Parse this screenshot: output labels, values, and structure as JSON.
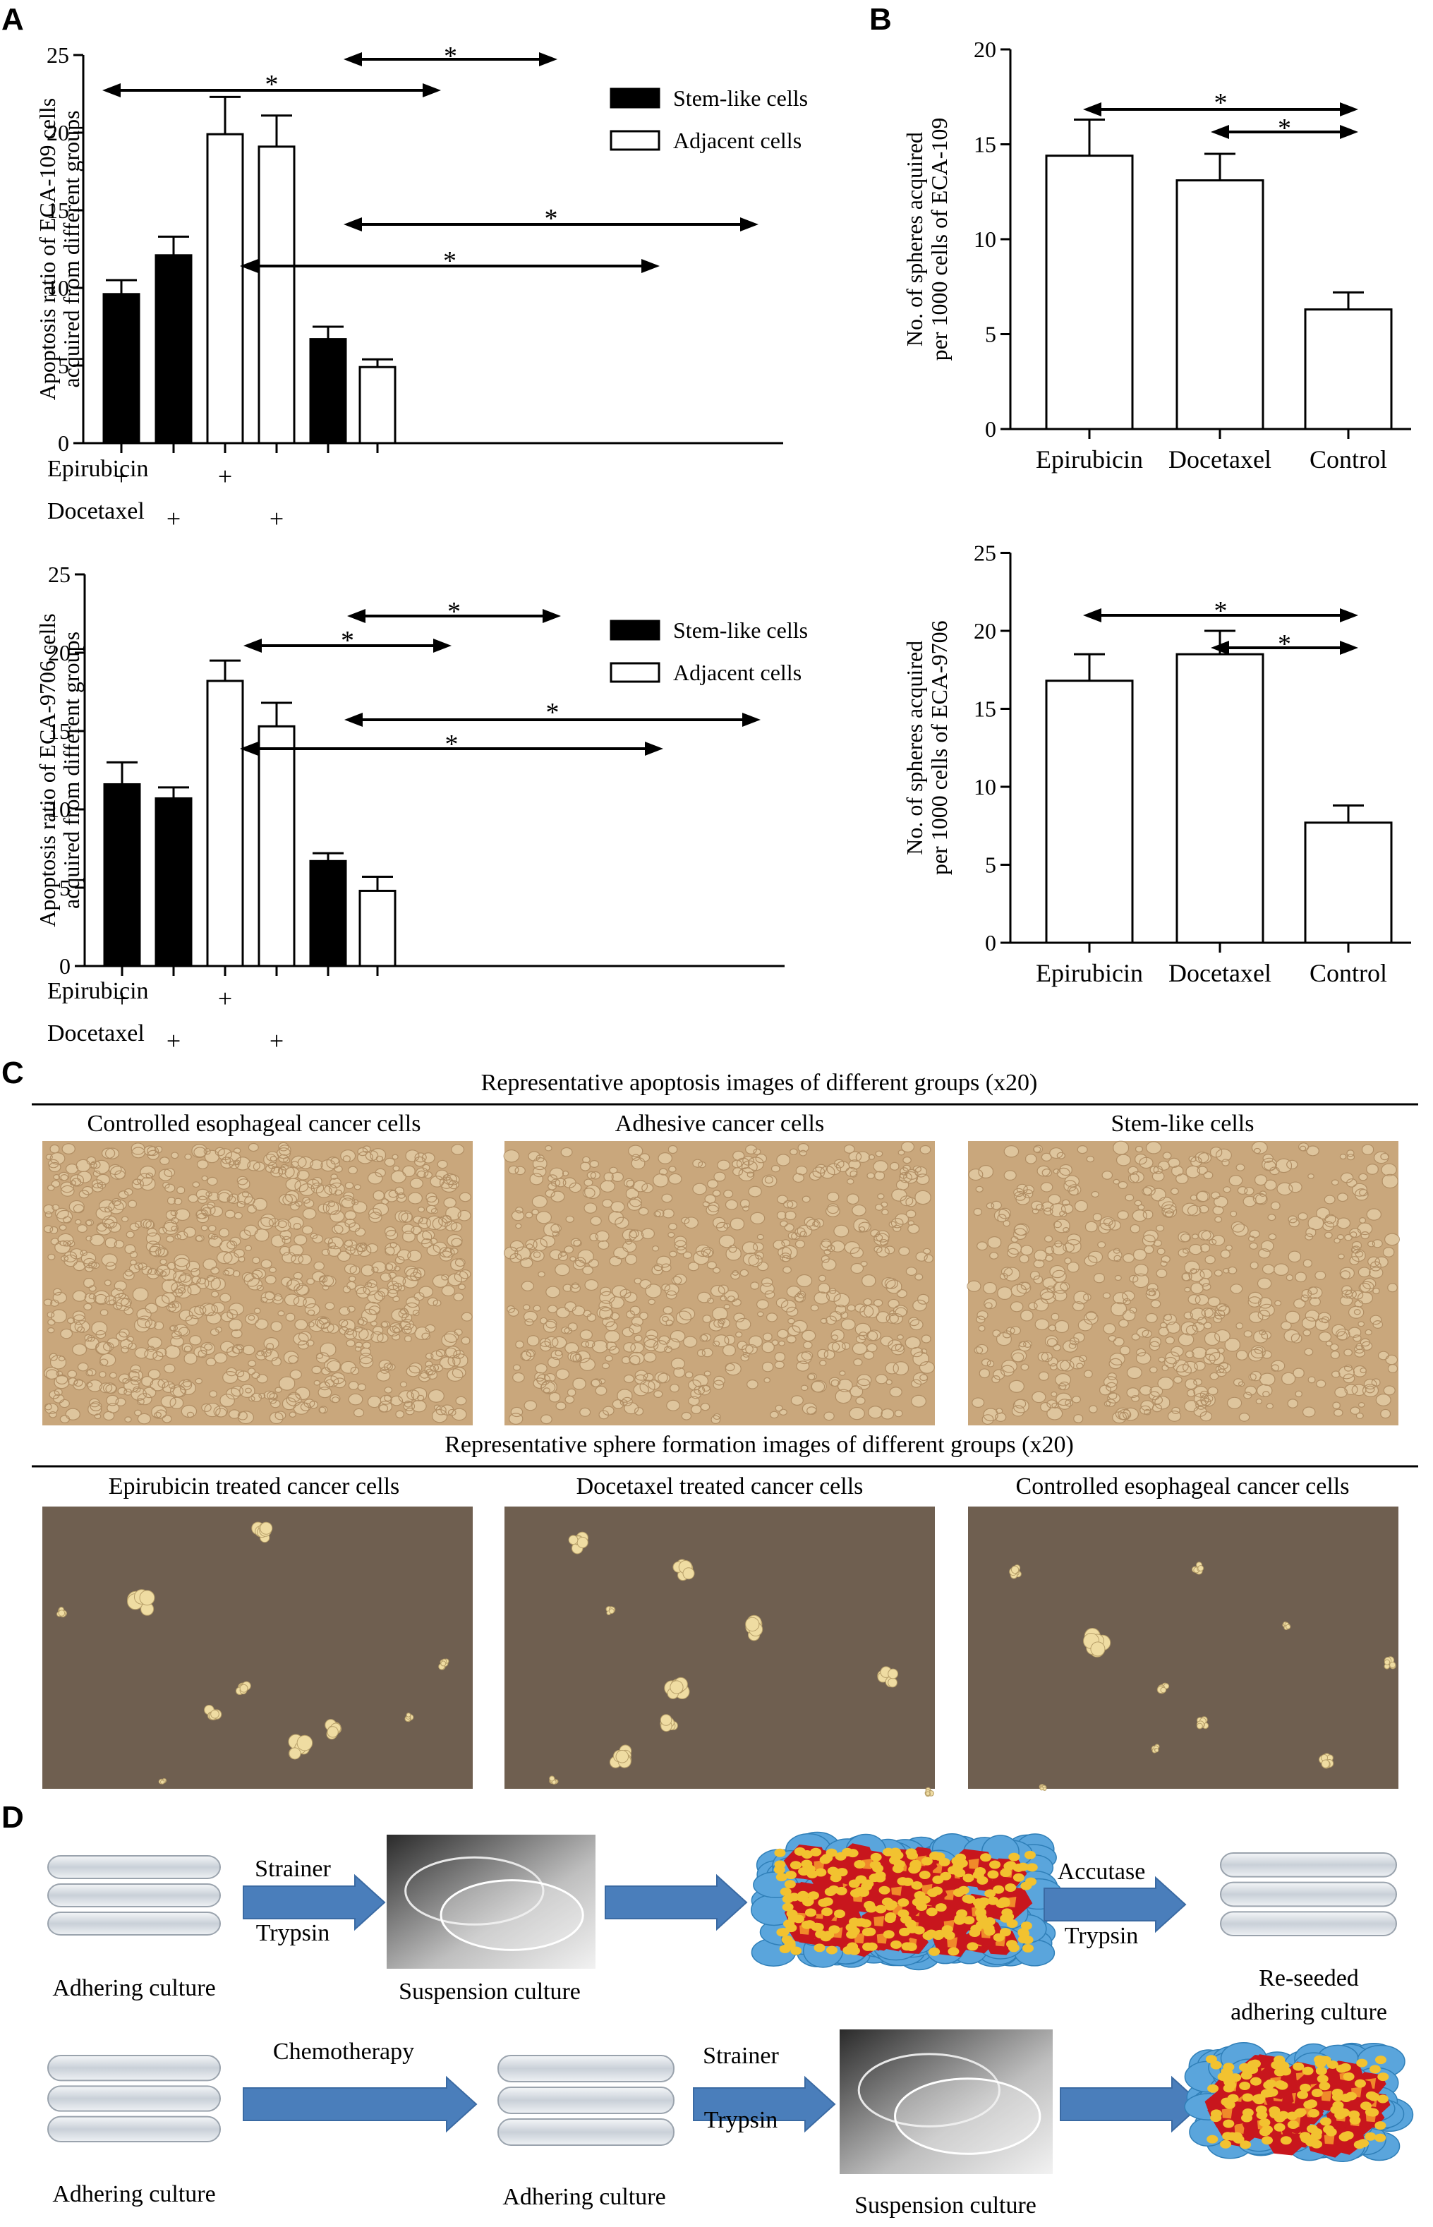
{
  "panels": {
    "a": "A",
    "b": "B",
    "c": "C",
    "d": "D"
  },
  "chart_data": [
    {
      "id": "A1",
      "type": "bar",
      "ylabel": [
        "Apoptosis ratio of ECA-109 cells",
        "acquired from different groups"
      ],
      "ylim": [
        0,
        25
      ],
      "yticks": [
        0,
        5,
        10,
        15,
        20,
        25
      ],
      "values": [
        9.6,
        12.1,
        19.9,
        19.1,
        6.7,
        4.9
      ],
      "errors": [
        0.9,
        1.2,
        2.4,
        2.0,
        0.8,
        0.5
      ],
      "fills": [
        "black",
        "black",
        "white",
        "white",
        "black",
        "white"
      ],
      "legend": [
        {
          "name": "Stem-like cells",
          "fill": "black"
        },
        {
          "name": "Adjacent cells",
          "fill": "white"
        }
      ],
      "legend_position": "top-right",
      "treatments": {
        "rows": [
          "Epirubicin",
          "Docetaxel"
        ],
        "marks": [
          "+",
          "+"
        ],
        "epirubicin_bars": [
          0,
          2
        ],
        "docetaxel_bars": [
          1,
          3
        ]
      },
      "significance": [
        {
          "from": 0,
          "to": 2,
          "label": "*"
        },
        {
          "from": 1,
          "to": 3,
          "label": "*"
        },
        {
          "from": 1,
          "to": 5,
          "label": "*"
        },
        {
          "from": 0,
          "to": 4,
          "label": "*"
        }
      ]
    },
    {
      "id": "A2",
      "type": "bar",
      "ylabel": [
        "Apoptosis ratio of ECA-9706 cells",
        "acquired from different groups"
      ],
      "ylim": [
        0,
        25
      ],
      "yticks": [
        0,
        5,
        10,
        15,
        20,
        25
      ],
      "values": [
        11.6,
        10.7,
        18.2,
        15.3,
        6.7,
        4.8
      ],
      "errors": [
        1.4,
        0.7,
        1.3,
        1.5,
        0.5,
        0.9
      ],
      "fills": [
        "black",
        "black",
        "white",
        "white",
        "black",
        "white"
      ],
      "legend": [
        {
          "name": "Stem-like cells",
          "fill": "black"
        },
        {
          "name": "Adjacent cells",
          "fill": "white"
        }
      ],
      "legend_position": "top-right",
      "treatments": {
        "rows": [
          "Epirubicin",
          "Docetaxel"
        ],
        "marks": [
          "+",
          "+"
        ],
        "epirubicin_bars": [
          0,
          2
        ],
        "docetaxel_bars": [
          1,
          3
        ]
      },
      "significance": [
        {
          "from": 0,
          "to": 2,
          "label": "*"
        },
        {
          "from": 1,
          "to": 3,
          "label": "*"
        },
        {
          "from": 1,
          "to": 5,
          "label": "*"
        },
        {
          "from": 0,
          "to": 4,
          "label": "*"
        }
      ]
    },
    {
      "id": "B1",
      "type": "bar",
      "ylabel": [
        "No. of spheres acquired",
        "per 1000 cells of ECA-109"
      ],
      "ylim": [
        0,
        20
      ],
      "yticks": [
        0,
        5,
        10,
        15,
        20
      ],
      "categories": [
        "Epirubicin",
        "Docetaxel",
        "Control"
      ],
      "values": [
        14.4,
        13.1,
        6.3
      ],
      "errors": [
        1.9,
        1.4,
        0.9
      ],
      "significance": [
        {
          "from": 0,
          "to": 2,
          "label": "*"
        },
        {
          "from": 1,
          "to": 2,
          "label": "*"
        }
      ]
    },
    {
      "id": "B2",
      "type": "bar",
      "ylabel": [
        "No. of spheres acquired",
        "per 1000 cells of ECA-9706"
      ],
      "ylim": [
        0,
        25
      ],
      "yticks": [
        0,
        5,
        10,
        15,
        20,
        25
      ],
      "categories": [
        "Epirubicin",
        "Docetaxel",
        "Control"
      ],
      "values": [
        16.8,
        18.5,
        7.7
      ],
      "errors": [
        1.7,
        1.5,
        1.1
      ],
      "significance": [
        {
          "from": 0,
          "to": 2,
          "label": "*"
        },
        {
          "from": 1,
          "to": 2,
          "label": "*"
        }
      ]
    }
  ],
  "panel_c": {
    "apoptosis_title": "Representative apoptosis images of different groups (x20)",
    "apoptosis_images": [
      "Controlled esophageal cancer cells",
      "Adhesive cancer cells",
      "Stem-like cells"
    ],
    "sphere_title": "Representative sphere formation images of different groups (x20)",
    "sphere_images": [
      "Epirubicin treated cancer cells",
      "Docetaxel treated cancer cells",
      "Controlled esophageal cancer cells"
    ],
    "colors": {
      "apoptosis_bg": "#c9a77c",
      "sphere_bg": "#6f5f50",
      "sphere_color": "#efdca2"
    }
  },
  "panel_d": {
    "row1": {
      "adhering": "Adhering culture",
      "strainer": "Strainer",
      "trypsin": "Trypsin",
      "suspension": "Suspension culture",
      "accutase": "Accutase",
      "trypsin2": "Trypsin",
      "reseeded_1": "Re-seeded",
      "reseeded_2": "adhering culture"
    },
    "row2": {
      "adhering": "Adhering culture",
      "chemotherapy": "Chemotherapy",
      "adhering2": "Adhering culture",
      "strainer": "Strainer",
      "trypsin": "Trypsin",
      "suspension": "Suspension culture"
    },
    "colors": {
      "arrow": "#4a7ebb",
      "cell_blue": "#5aa5dc",
      "cell_red": "#c8161d",
      "nucleus": "#f2c230"
    }
  }
}
